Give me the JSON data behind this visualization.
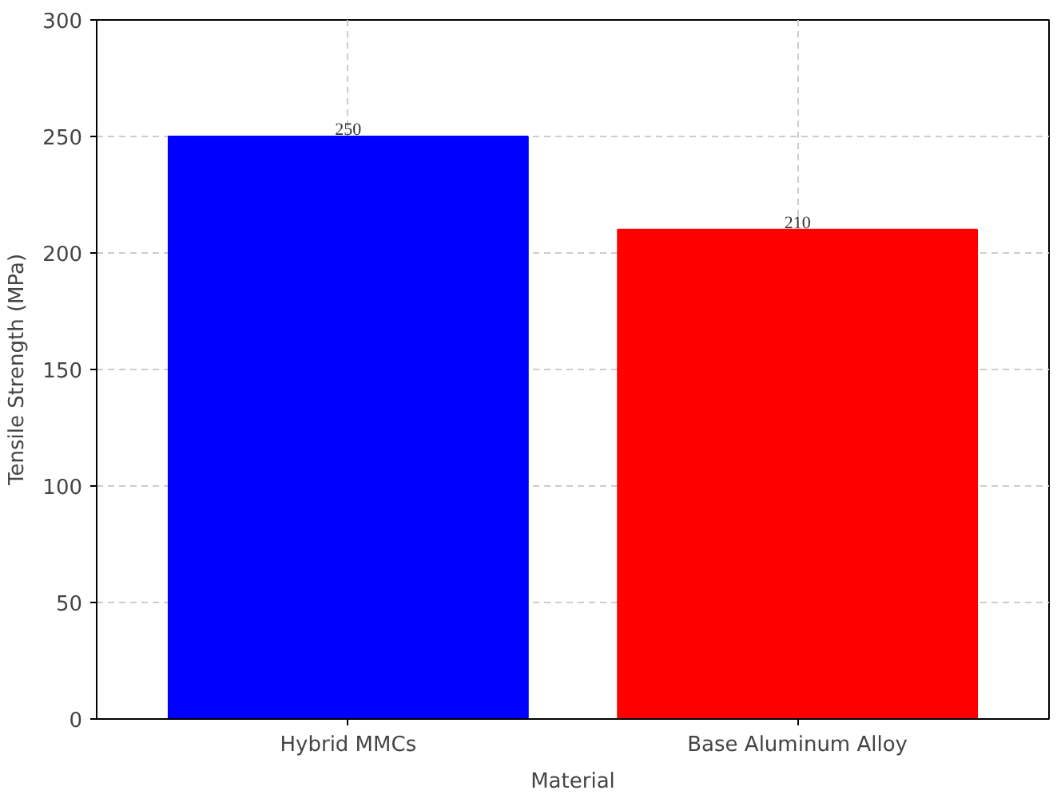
{
  "chart_data": {
    "type": "bar",
    "xlabel": "Material",
    "ylabel": "Tensile Strength (MPa)",
    "categories": [
      "Hybrid MMCs",
      "Base Aluminum Alloy"
    ],
    "values": [
      250,
      210
    ],
    "colors": [
      "#0000ff",
      "#ff0000"
    ],
    "ylim": [
      0,
      300
    ],
    "yticks": [
      0,
      50,
      100,
      150,
      200,
      250,
      300
    ],
    "grid": true,
    "data_labels": true
  }
}
